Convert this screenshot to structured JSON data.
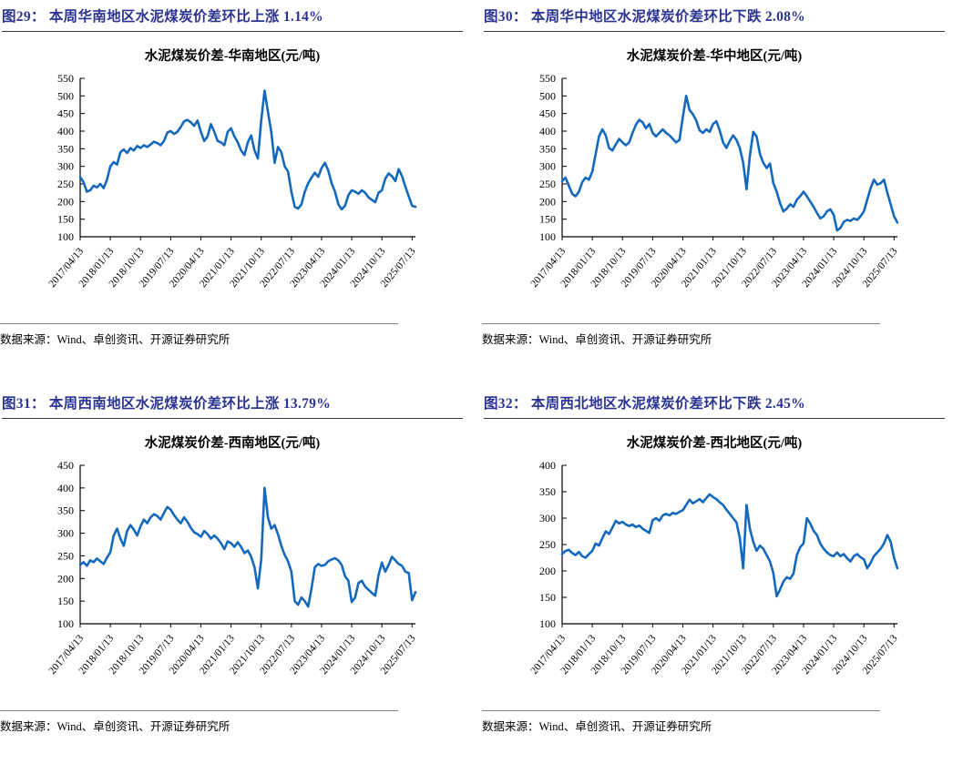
{
  "colors": {
    "line": "#1569BD",
    "figure_title": "#2B3490",
    "axis": "#000000",
    "title_rule": "#3a3a3a",
    "source_rule": "#7f7f7f"
  },
  "source_note": "数据来源：Wind、卓创资讯、开源证券研究所",
  "x_tick_labels": [
    "2017/04/13",
    "2018/01/13",
    "2018/10/13",
    "2019/07/13",
    "2020/04/13",
    "2021/01/13",
    "2021/10/13",
    "2022/07/13",
    "2023/04/13",
    "2024/01/13",
    "2024/10/13",
    "2025/07/13"
  ],
  "chart_data": [
    {
      "type": "line",
      "figure_label": "图29： 本周华南地区水泥煤炭价差环比上涨 1.14%",
      "title": "水泥煤炭价差-华南地区(元/吨)",
      "region": "华南地区",
      "unit": "元/吨",
      "wow_change_pct": 1.14,
      "wow_direction": "上涨",
      "ylim": [
        100,
        550
      ],
      "ytick_step": 50,
      "grid": false,
      "legend": "none",
      "x_tick_labels": [
        "2017/04/13",
        "2018/01/13",
        "2018/10/13",
        "2019/07/13",
        "2020/04/13",
        "2021/01/13",
        "2021/10/13",
        "2022/07/13",
        "2023/04/13",
        "2024/01/13",
        "2024/10/13",
        "2025/07/13"
      ],
      "series": [
        {
          "name": "水泥煤炭价差-华南地区",
          "values": [
            270,
            255,
            228,
            232,
            245,
            240,
            250,
            238,
            262,
            300,
            312,
            305,
            340,
            348,
            338,
            352,
            345,
            358,
            352,
            360,
            355,
            362,
            370,
            366,
            360,
            372,
            396,
            400,
            392,
            398,
            412,
            428,
            432,
            425,
            415,
            430,
            398,
            372,
            385,
            420,
            398,
            372,
            368,
            360,
            398,
            408,
            385,
            368,
            345,
            332,
            368,
            388,
            345,
            322,
            430,
            515,
            455,
            398,
            310,
            355,
            340,
            300,
            285,
            228,
            185,
            180,
            192,
            228,
            252,
            268,
            282,
            270,
            295,
            310,
            288,
            252,
            228,
            192,
            178,
            188,
            218,
            232,
            228,
            222,
            232,
            225,
            212,
            205,
            198,
            225,
            232,
            265,
            280,
            272,
            258,
            292,
            272,
            242,
            215,
            188,
            185
          ]
        }
      ]
    },
    {
      "type": "line",
      "figure_label": "图30： 本周华中地区水泥煤炭价差环比下跌 2.08%",
      "title": "水泥煤炭价差-华中地区(元/吨)",
      "region": "华中地区",
      "unit": "元/吨",
      "wow_change_pct": -2.08,
      "wow_direction": "下跌",
      "ylim": [
        100,
        550
      ],
      "ytick_step": 50,
      "grid": false,
      "legend": "none",
      "x_tick_labels": [
        "2017/04/13",
        "2018/01/13",
        "2018/10/13",
        "2019/07/13",
        "2020/04/13",
        "2021/01/13",
        "2021/10/13",
        "2022/07/13",
        "2023/04/13",
        "2024/01/13",
        "2024/10/13",
        "2025/07/13"
      ],
      "series": [
        {
          "name": "水泥煤炭价差-华中地区",
          "values": [
            258,
            268,
            245,
            222,
            215,
            228,
            255,
            268,
            262,
            285,
            335,
            385,
            405,
            388,
            352,
            345,
            362,
            378,
            368,
            360,
            368,
            395,
            418,
            432,
            425,
            408,
            420,
            395,
            385,
            395,
            405,
            395,
            388,
            378,
            368,
            375,
            440,
            500,
            460,
            448,
            430,
            402,
            395,
            405,
            398,
            420,
            428,
            402,
            368,
            352,
            372,
            388,
            375,
            352,
            310,
            235,
            330,
            398,
            385,
            335,
            310,
            295,
            308,
            252,
            228,
            195,
            172,
            180,
            192,
            185,
            205,
            215,
            228,
            215,
            200,
            185,
            168,
            152,
            158,
            172,
            178,
            162,
            118,
            125,
            142,
            148,
            145,
            152,
            148,
            158,
            172,
            205,
            238,
            262,
            248,
            252,
            262,
            225,
            192,
            158,
            140
          ]
        }
      ]
    },
    {
      "type": "line",
      "figure_label": "图31： 本周西南地区水泥煤炭价差环比上涨 13.79%",
      "title": "水泥煤炭价差-西南地区(元/吨)",
      "region": "西南地区",
      "unit": "元/吨",
      "wow_change_pct": 13.79,
      "wow_direction": "上涨",
      "ylim": [
        100,
        450
      ],
      "ytick_step": 50,
      "grid": false,
      "legend": "none",
      "x_tick_labels": [
        "2017/04/13",
        "2018/01/13",
        "2018/10/13",
        "2019/07/13",
        "2020/04/13",
        "2021/01/13",
        "2021/10/13",
        "2022/07/13",
        "2023/04/13",
        "2024/01/13",
        "2024/10/13",
        "2025/07/13"
      ],
      "series": [
        {
          "name": "水泥煤炭价差-西南地区",
          "values": [
            230,
            236,
            228,
            240,
            236,
            244,
            238,
            232,
            246,
            258,
            295,
            310,
            288,
            272,
            305,
            318,
            308,
            295,
            315,
            330,
            322,
            335,
            342,
            338,
            330,
            345,
            358,
            352,
            340,
            330,
            322,
            335,
            325,
            312,
            302,
            298,
            292,
            305,
            298,
            288,
            295,
            288,
            278,
            265,
            282,
            278,
            270,
            280,
            270,
            256,
            262,
            248,
            225,
            178,
            242,
            400,
            335,
            310,
            318,
            298,
            272,
            252,
            238,
            215,
            150,
            142,
            158,
            150,
            138,
            178,
            225,
            232,
            228,
            230,
            238,
            242,
            245,
            240,
            230,
            205,
            195,
            148,
            158,
            190,
            195,
            182,
            175,
            168,
            162,
            208,
            235,
            215,
            230,
            248,
            240,
            232,
            228,
            215,
            212,
            152,
            170
          ]
        }
      ]
    },
    {
      "type": "line",
      "figure_label": "图32： 本周西北地区水泥煤炭价差环比下跌 2.45%",
      "title": "水泥煤炭价差-西北地区(元/吨)",
      "region": "西北地区",
      "unit": "元/吨",
      "wow_change_pct": -2.45,
      "wow_direction": "下跌",
      "ylim": [
        100,
        400
      ],
      "ytick_step": 50,
      "grid": false,
      "legend": "none",
      "x_tick_labels": [
        "2017/04/13",
        "2018/01/13",
        "2018/10/13",
        "2019/07/13",
        "2020/04/13",
        "2021/01/13",
        "2021/10/13",
        "2022/07/13",
        "2023/04/13",
        "2024/01/13",
        "2024/10/13",
        "2025/07/13"
      ],
      "series": [
        {
          "name": "水泥煤炭价差-西北地区",
          "values": [
            232,
            238,
            240,
            234,
            230,
            236,
            228,
            225,
            232,
            238,
            252,
            248,
            262,
            275,
            270,
            282,
            295,
            290,
            293,
            288,
            285,
            288,
            283,
            286,
            280,
            276,
            272,
            296,
            300,
            295,
            305,
            308,
            305,
            310,
            308,
            312,
            315,
            325,
            335,
            328,
            332,
            336,
            330,
            338,
            345,
            340,
            336,
            330,
            325,
            316,
            308,
            300,
            292,
            262,
            205,
            325,
            280,
            255,
            238,
            248,
            242,
            230,
            218,
            196,
            152,
            165,
            180,
            188,
            185,
            195,
            230,
            245,
            252,
            300,
            290,
            276,
            268,
            252,
            242,
            235,
            230,
            228,
            235,
            228,
            232,
            224,
            218,
            228,
            232,
            226,
            222,
            205,
            215,
            228,
            235,
            242,
            252,
            268,
            255,
            225,
            205
          ]
        }
      ]
    }
  ]
}
